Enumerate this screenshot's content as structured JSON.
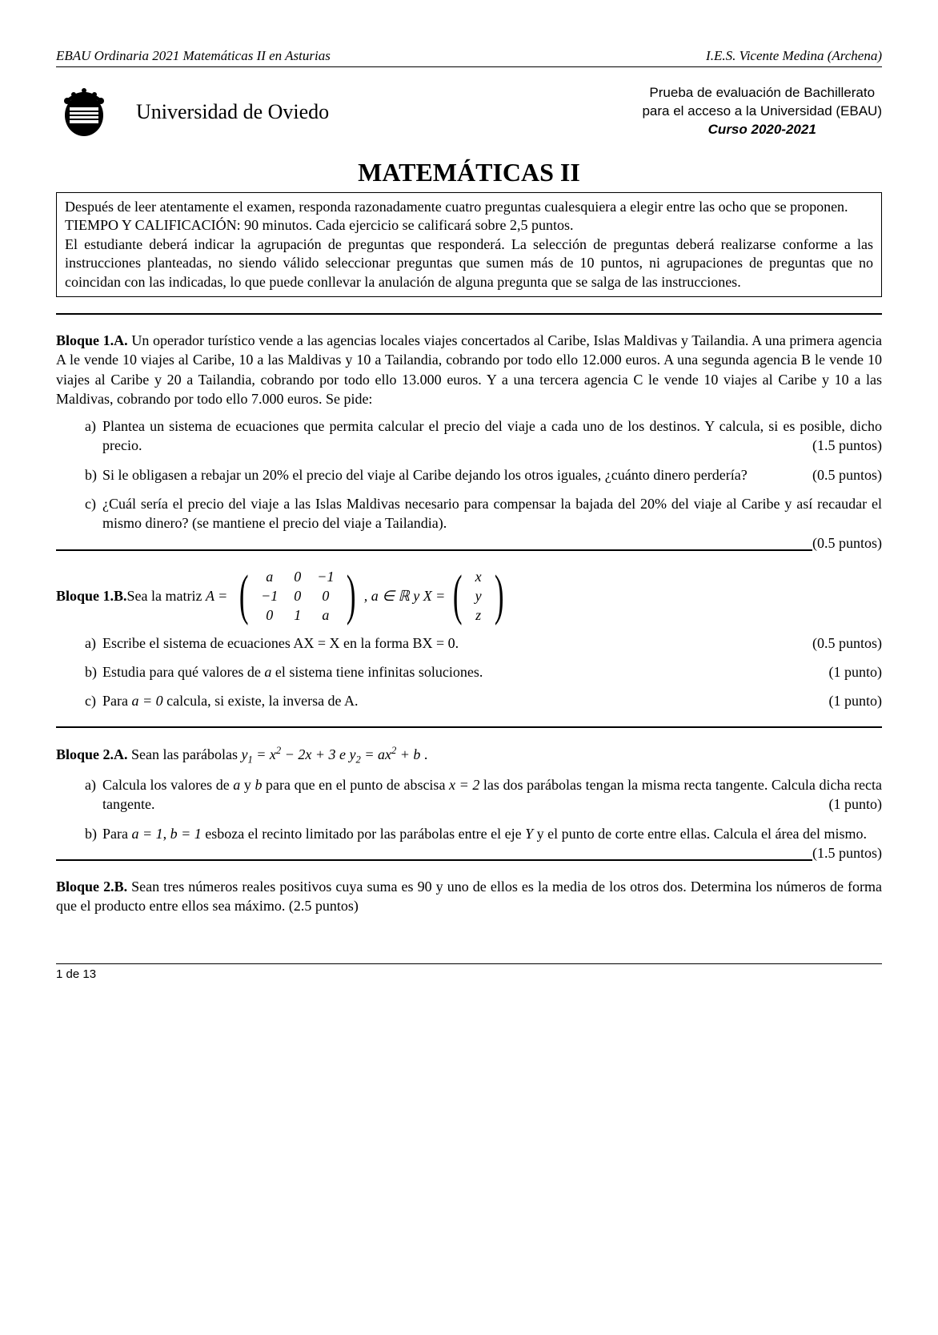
{
  "header": {
    "left": "EBAU Ordinaria 2021 Matemáticas II en Asturias",
    "right": "I.E.S. Vicente Medina (Archena)"
  },
  "university": "Universidad de Oviedo",
  "exam_info": {
    "line1": "Prueba de evaluación de Bachillerato",
    "line2": "para el acceso a la Universidad (EBAU)",
    "line3": "Curso 2020-2021"
  },
  "title": "MATEMÁTICAS II",
  "instructions": {
    "p1": "Después de leer atentamente el examen, responda razonadamente cuatro preguntas cualesquiera a elegir entre las ocho que se proponen.",
    "p2": "TIEMPO Y CALIFICACIÓN: 90 minutos. Cada ejercicio se calificará sobre 2,5 puntos.",
    "p3": "El estudiante deberá indicar la agrupación de preguntas que responderá. La selección de preguntas deberá realizarse conforme a las instrucciones planteadas, no siendo válido seleccionar preguntas que sumen más de 10 puntos, ni agrupaciones de preguntas que no coincidan con las indicadas, lo que puede conllevar la anulación de alguna pregunta que se salga de las instrucciones."
  },
  "b1a": {
    "label": "Bloque 1.A.",
    "text": " Un operador turístico vende a las agencias locales viajes concertados al Caribe, Islas Maldivas y Tailandia. A una primera agencia A le vende 10 viajes al Caribe, 10 a las Maldivas y 10 a Tailandia, cobrando por todo ello 12.000 euros. A una segunda agencia B le vende 10 viajes al Caribe y 20 a Tailandia, cobrando por todo ello 13.000 euros. Y a una tercera agencia C le vende 10 viajes al Caribe y 10 a las Maldivas, cobrando por todo ello 7.000 euros. Se pide:",
    "a": "Plantea un sistema de ecuaciones que permita calcular el precio del viaje a cada uno de los destinos. Y calcula, si es posible, dicho precio.",
    "a_pts": "(1.5 puntos)",
    "b": "Si le obligasen a rebajar un 20% el precio del viaje al Caribe dejando los otros iguales, ¿cuánto dinero perdería?",
    "b_pts": "(0.5 puntos)",
    "c": "¿Cuál sería el precio del viaje a las Islas Maldivas necesario para compensar la bajada del 20% del viaje al Caribe y así recaudar el mismo dinero? (se mantiene el precio del viaje a Tailandia).",
    "c_pts": "(0.5 puntos)"
  },
  "b1b": {
    "label": "Bloque 1.B.",
    "intro": " Sea la matriz ",
    "matrixA": [
      [
        "a",
        "0",
        "−1"
      ],
      [
        "−1",
        "0",
        "0"
      ],
      [
        "0",
        "1",
        "a"
      ]
    ],
    "mid": ",   a ∈ ℝ  y  X = ",
    "matrixX": [
      [
        "x"
      ],
      [
        "y"
      ],
      [
        "z"
      ]
    ],
    "a": "Escribe el sistema de ecuaciones AX = X en la forma BX = 0.",
    "a_pts": "(0.5 puntos)",
    "b": "Estudia para qué valores de a el sistema tiene infinitas soluciones.",
    "b_pts": "(1 punto)",
    "c": "Para a = 0 calcula, si existe, la inversa de A.",
    "c_pts": "(1 punto)"
  },
  "b2a": {
    "label": "Bloque 2.A.",
    "intro": " Sean las parábolas  ",
    "eq1": "y₁ = x² − 2x + 3",
    "mid": "  e  ",
    "eq2": "y₂ = ax² + b",
    "end": " .",
    "a": "Calcula los valores de a y b para que en el punto de abscisa x = 2 las dos parábolas tengan la misma recta tangente. Calcula dicha recta tangente.",
    "a_pts": "(1 punto)",
    "b": "Para a = 1, b = 1 esboza el recinto limitado por las parábolas entre el eje Y y el punto de corte entre ellas. Calcula el área del mismo.",
    "b_pts": "(1.5 puntos)"
  },
  "b2b": {
    "label": "Bloque 2.B.",
    "text": " Sean tres números reales positivos cuya suma es 90 y uno de ellos es la media de los otros dos. Determina los números de forma que el producto entre ellos sea máximo. (2.5 puntos)"
  },
  "footer": "1 de 13"
}
